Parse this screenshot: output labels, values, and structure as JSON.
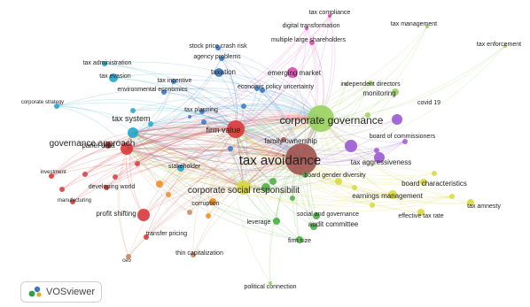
{
  "app": {
    "logo_text": "VOSviewer"
  },
  "clusters": {
    "red": "#d9383a",
    "cyan": "#21a6c9",
    "blue": "#3a78c2",
    "green": "#4aae3f",
    "lightgreen": "#9ad25e",
    "yellow": "#d8d83a",
    "orange": "#f08a1d",
    "purple": "#9b59d0",
    "pink": "#d94ab0",
    "brown": "#a0524d",
    "tan": "#c98a62"
  },
  "nodes": [
    {
      "label": "tax avoidance",
      "cluster": "brown"
    },
    {
      "label": "corporate governance",
      "cluster": "lightgreen"
    },
    {
      "label": "corporate social responsibilit",
      "cluster": "yellow"
    },
    {
      "label": "governance approach",
      "cluster": "red"
    },
    {
      "label": "tax system",
      "cluster": "cyan"
    },
    {
      "label": "firm value",
      "cluster": "red"
    },
    {
      "label": "earnings management",
      "cluster": "yellow"
    },
    {
      "label": "board characteristics",
      "cluster": "yellow"
    },
    {
      "label": "tax aggressiveness",
      "cluster": "purple"
    },
    {
      "label": "family ownership",
      "cluster": "brown"
    },
    {
      "label": "emerging market",
      "cluster": "pink"
    },
    {
      "label": "taxation",
      "cluster": "blue"
    },
    {
      "label": "profit shifting",
      "cluster": "red"
    },
    {
      "label": "panel data",
      "cluster": "red"
    },
    {
      "label": "board of commissioners",
      "cluster": "purple"
    },
    {
      "label": "independent directors",
      "cluster": "lightgreen"
    },
    {
      "label": "monitoring",
      "cluster": "lightgreen"
    },
    {
      "label": "covid 19",
      "cluster": "purple"
    },
    {
      "label": "tax compliance",
      "cluster": "pink"
    },
    {
      "label": "tax management",
      "cluster": "lightgreen"
    },
    {
      "label": "tax enforcement",
      "cluster": "lightgreen"
    },
    {
      "label": "digital transformation",
      "cluster": "pink"
    },
    {
      "label": "multiple large shareholders",
      "cluster": "pink"
    },
    {
      "label": "stock price crash risk",
      "cluster": "blue"
    },
    {
      "label": "agency problems",
      "cluster": "blue"
    },
    {
      "label": "tax administration",
      "cluster": "cyan"
    },
    {
      "label": "tax evasion",
      "cluster": "cyan"
    },
    {
      "label": "tax incentive",
      "cluster": "blue"
    },
    {
      "label": "environmental economics",
      "cluster": "blue"
    },
    {
      "label": "economic policy uncertainty",
      "cluster": "blue"
    },
    {
      "label": "corporate strategy",
      "cluster": "cyan"
    },
    {
      "label": "tax planning",
      "cluster": "blue"
    },
    {
      "label": "stakeholder",
      "cluster": "cyan"
    },
    {
      "label": "investment",
      "cluster": "red"
    },
    {
      "label": "developing world",
      "cluster": "red"
    },
    {
      "label": "manufacturing",
      "cluster": "red"
    },
    {
      "label": "board gender diversity",
      "cluster": "green"
    },
    {
      "label": "corruption",
      "cluster": "orange"
    },
    {
      "label": "transfer pricing",
      "cluster": "red"
    },
    {
      "label": "leverage",
      "cluster": "green"
    },
    {
      "label": "social and governance",
      "cluster": "green"
    },
    {
      "label": "audit committee",
      "cluster": "green"
    },
    {
      "label": "firm size",
      "cluster": "green"
    },
    {
      "label": "effective tax rate",
      "cluster": "yellow"
    },
    {
      "label": "tax amnesty",
      "cluster": "yellow"
    },
    {
      "label": "ceo",
      "cluster": "tan"
    },
    {
      "label": "thin capitalization",
      "cluster": "tan"
    },
    {
      "label": "political connection",
      "cluster": "lightgreen"
    }
  ]
}
